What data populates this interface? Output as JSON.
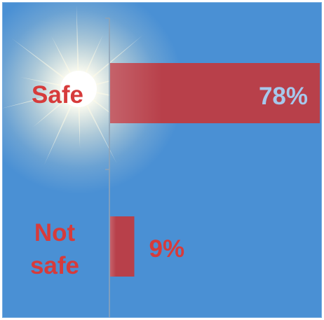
{
  "chart_data": {
    "type": "bar",
    "orientation": "horizontal",
    "categories": [
      "Safe",
      "Not safe"
    ],
    "values": [
      78,
      9
    ],
    "value_labels": [
      "78%",
      "9%"
    ],
    "xlim": [
      0,
      78
    ],
    "grid": false,
    "colors": {
      "background": "#4a90d4",
      "bar": "#b8404a",
      "category_label": "#d63b3b",
      "value_label_inside": "#a6c8ec",
      "value_label_outside": "#d63b3b",
      "axis": "#8fa3b6"
    },
    "decoration": "sunburst-icon"
  }
}
